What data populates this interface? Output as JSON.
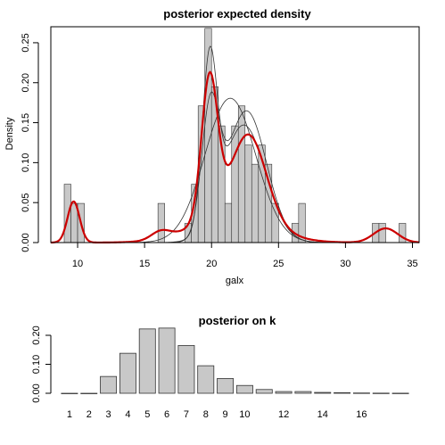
{
  "chart_data": [
    {
      "type": "histogram",
      "title": "posterior expected density",
      "xlabel": "galx",
      "ylabel": "Density",
      "xlim": [
        8,
        35.5
      ],
      "ylim": [
        0,
        0.27
      ],
      "x_ticks": [
        10,
        15,
        20,
        25,
        30,
        35
      ],
      "y_ticks": [
        0.0,
        0.05,
        0.1,
        0.15,
        0.2,
        0.25
      ],
      "y_tick_labels": [
        "0.00",
        "0.05",
        "0.10",
        "0.15",
        "0.20",
        "0.25"
      ],
      "bin_width": 0.5,
      "bins": [
        {
          "x0": 9.0,
          "density": 0.073
        },
        {
          "x0": 9.5,
          "density": 0.049
        },
        {
          "x0": 10.0,
          "density": 0.049
        },
        {
          "x0": 16.0,
          "density": 0.049
        },
        {
          "x0": 18.0,
          "density": 0.024
        },
        {
          "x0": 18.5,
          "density": 0.073
        },
        {
          "x0": 19.0,
          "density": 0.171
        },
        {
          "x0": 19.5,
          "density": 0.268
        },
        {
          "x0": 20.0,
          "density": 0.195
        },
        {
          "x0": 20.5,
          "density": 0.146
        },
        {
          "x0": 21.0,
          "density": 0.049
        },
        {
          "x0": 21.5,
          "density": 0.146
        },
        {
          "x0": 22.0,
          "density": 0.171
        },
        {
          "x0": 22.5,
          "density": 0.122
        },
        {
          "x0": 23.0,
          "density": 0.098
        },
        {
          "x0": 23.5,
          "density": 0.122
        },
        {
          "x0": 24.0,
          "density": 0.098
        },
        {
          "x0": 24.5,
          "density": 0.049
        },
        {
          "x0": 26.0,
          "density": 0.024
        },
        {
          "x0": 26.5,
          "density": 0.049
        },
        {
          "x0": 32.0,
          "density": 0.024
        },
        {
          "x0": 32.5,
          "density": 0.024
        },
        {
          "x0": 34.0,
          "density": 0.024
        }
      ],
      "red_curve": {
        "color": "#cc0000",
        "components": [
          {
            "mean": 9.7,
            "sd": 0.45,
            "weight": 0.058
          },
          {
            "mean": 16.2,
            "sd": 0.7,
            "weight": 0.017
          },
          {
            "mean": 19.85,
            "sd": 0.6,
            "weight": 0.265
          },
          {
            "mean": 22.8,
            "sd": 1.3,
            "weight": 0.34
          },
          {
            "mean": 21.5,
            "sd": 2.8,
            "weight": 0.24
          },
          {
            "mean": 33.0,
            "sd": 0.9,
            "weight": 0.04
          }
        ]
      },
      "sample_curves": {
        "color": "#333333",
        "curves": [
          [
            {
              "mean": 9.7,
              "sd": 0.45,
              "weight": 0.058
            },
            {
              "mean": 21.4,
              "sd": 1.9,
              "weight": 0.86
            },
            {
              "mean": 33.0,
              "sd": 0.9,
              "weight": 0.04
            }
          ],
          [
            {
              "mean": 9.7,
              "sd": 0.45,
              "weight": 0.058
            },
            {
              "mean": 19.9,
              "sd": 0.65,
              "weight": 0.25
            },
            {
              "mean": 22.6,
              "sd": 1.5,
              "weight": 0.62
            },
            {
              "mean": 33.0,
              "sd": 0.9,
              "weight": 0.04
            }
          ],
          [
            {
              "mean": 9.7,
              "sd": 0.45,
              "weight": 0.058
            },
            {
              "mean": 19.85,
              "sd": 0.55,
              "weight": 0.28
            },
            {
              "mean": 22.4,
              "sd": 1.6,
              "weight": 0.59
            },
            {
              "mean": 33.0,
              "sd": 0.9,
              "weight": 0.04
            }
          ]
        ]
      }
    },
    {
      "type": "bar",
      "title": "posterior on k",
      "categories": [
        "1",
        "2",
        "3",
        "4",
        "5",
        "6",
        "7",
        "8",
        "9",
        "10",
        "11",
        "12",
        "13",
        "14",
        "15",
        "16",
        "17",
        "18"
      ],
      "visible_x_labels": [
        "1",
        "2",
        "3",
        "4",
        "5",
        "6",
        "7",
        "8",
        "9",
        "10",
        "12",
        "14",
        "16"
      ],
      "values": [
        0.0,
        0.0,
        0.058,
        0.138,
        0.222,
        0.225,
        0.165,
        0.095,
        0.051,
        0.027,
        0.013,
        0.006,
        0.006,
        0.003,
        0.002,
        0.001,
        0.0005,
        0.0003
      ],
      "ylim": [
        0,
        0.24
      ],
      "y_ticks": [
        0.0,
        0.1,
        0.2
      ],
      "y_tick_labels": [
        "0.00",
        "0.10",
        "0.20"
      ]
    }
  ]
}
